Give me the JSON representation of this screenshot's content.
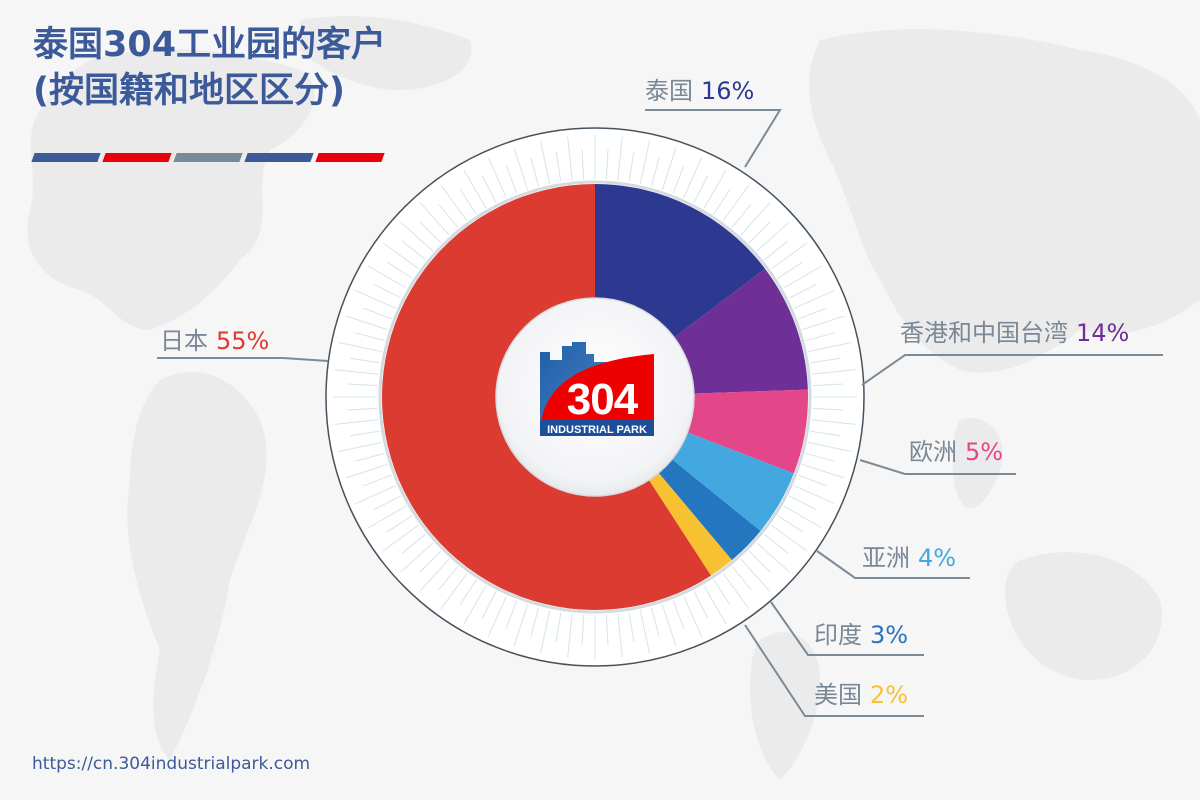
{
  "title": {
    "line1": "泰国304工业园的客户",
    "line2": "(按国籍和地区区分)"
  },
  "stripes": [
    "#3d5a98",
    "#e8000b",
    "#7a8a98",
    "#3d5a98",
    "#e8000b"
  ],
  "logo": {
    "number": "304",
    "subtitle": "INDUSTRIAL PARK",
    "colors": {
      "red": "#ee0000",
      "blue": "#1d4e9a"
    }
  },
  "labels": [
    {
      "name": "泰国",
      "pct": "16%",
      "color": "#2d3990"
    },
    {
      "name": "香港和中国台湾",
      "pct": "14%",
      "color": "#6e2f96"
    },
    {
      "name": "欧洲",
      "pct": "5%",
      "color": "#e4468a"
    },
    {
      "name": "亚洲",
      "pct": "4%",
      "color": "#44a8e0"
    },
    {
      "name": "印度",
      "pct": "3%",
      "color": "#2476bf"
    },
    {
      "name": "美国",
      "pct": "2%",
      "color": "#f7c131"
    },
    {
      "name": "日本",
      "pct": "55%",
      "color": "#dc3b32"
    }
  ],
  "footer": {
    "url": "https://cn.304industrialpark.com"
  },
  "chart_data": {
    "type": "pie",
    "variant": "donut",
    "title": "泰国304工业园的客户 (按国籍和地区区分)",
    "categories": [
      "泰国",
      "香港和中国台湾",
      "欧洲",
      "亚洲",
      "印度",
      "美国",
      "日本"
    ],
    "values": [
      16,
      14,
      5,
      4,
      3,
      2,
      55
    ],
    "unit": "%",
    "colors": [
      "#2d3990",
      "#6e2f96",
      "#e4468a",
      "#44a8e0",
      "#2476bf",
      "#f7c131",
      "#dc3b32"
    ],
    "start_angle": "12 o'clock, clockwise",
    "legend": "callout labels with leader lines"
  }
}
